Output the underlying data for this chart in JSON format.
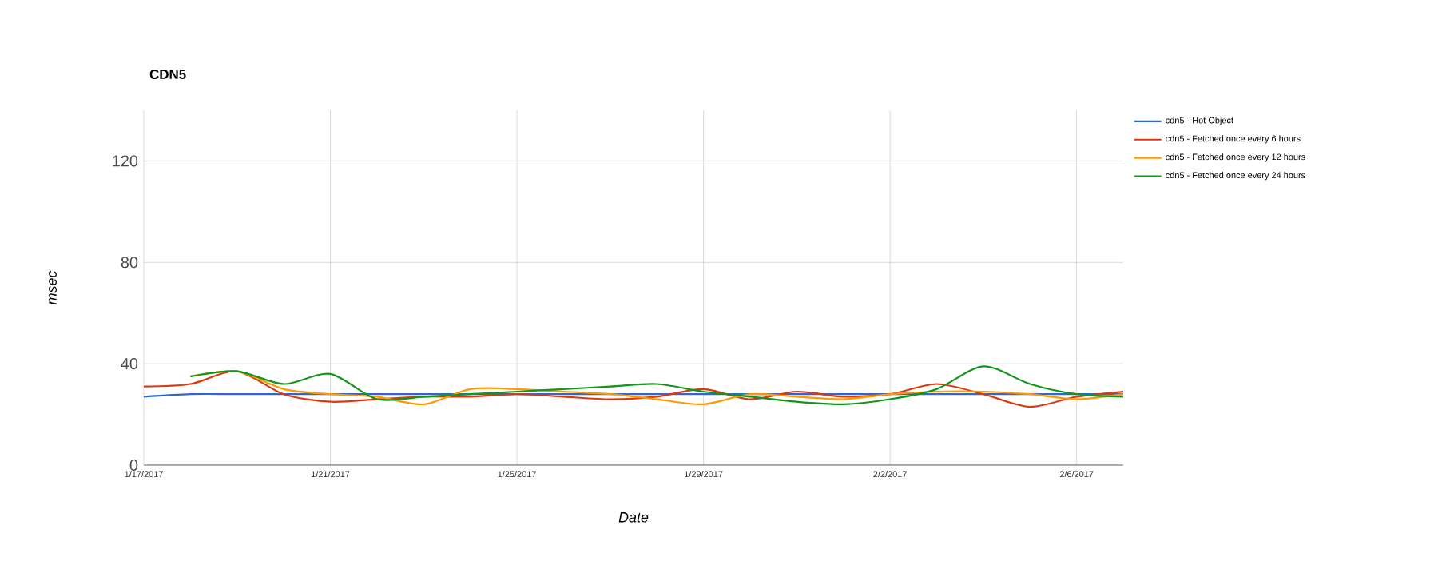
{
  "chart_data": {
    "type": "line",
    "title": "CDN5",
    "xlabel": "Date",
    "ylabel": "msec",
    "x": [
      "2017-01-17",
      "2017-01-18",
      "2017-01-19",
      "2017-01-20",
      "2017-01-21",
      "2017-01-22",
      "2017-01-23",
      "2017-01-24",
      "2017-01-25",
      "2017-01-26",
      "2017-01-27",
      "2017-01-28",
      "2017-01-29",
      "2017-01-30",
      "2017-01-31",
      "2017-02-01",
      "2017-02-02",
      "2017-02-03",
      "2017-02-04",
      "2017-02-05",
      "2017-02-06",
      "2017-02-07"
    ],
    "series": [
      {
        "name": "cdn5 - Hot Object",
        "color": "#3366cc",
        "values": [
          27,
          28,
          28,
          28,
          28,
          28,
          28,
          28,
          28,
          28,
          28,
          28,
          28,
          28,
          28,
          28,
          28,
          28,
          28,
          28,
          28,
          28
        ]
      },
      {
        "name": "cdn5 - Fetched once every 6 hours",
        "color": "#dc3912",
        "values": [
          31,
          32,
          37,
          28,
          25,
          26,
          27,
          27,
          28,
          27,
          26,
          27,
          30,
          26,
          29,
          27,
          28,
          32,
          28,
          23,
          27,
          29
        ]
      },
      {
        "name": "cdn5 - Fetched once every 12 hours",
        "color": "#ff9900",
        "values": [
          null,
          35,
          37,
          30,
          28,
          27,
          24,
          30,
          30,
          29,
          28,
          26,
          24,
          28,
          27,
          26,
          28,
          29,
          29,
          28,
          26,
          28
        ]
      },
      {
        "name": "cdn5 - Fetched once every 24 hours",
        "color": "#109618",
        "values": [
          null,
          35,
          37,
          32,
          36,
          26,
          27,
          28,
          29,
          30,
          31,
          32,
          29,
          27,
          25,
          24,
          26,
          30,
          39,
          32,
          28,
          27
        ]
      }
    ],
    "xlim": [
      "2017-01-17",
      "2017-02-07"
    ],
    "xticks": [
      {
        "value": "2017-01-17",
        "label": "1/17/2017"
      },
      {
        "value": "2017-01-21",
        "label": "1/21/2017"
      },
      {
        "value": "2017-01-25",
        "label": "1/25/2017"
      },
      {
        "value": "2017-01-29",
        "label": "1/29/2017"
      },
      {
        "value": "2017-02-02",
        "label": "2/2/2017"
      },
      {
        "value": "2017-02-06",
        "label": "2/6/2017"
      }
    ],
    "ylim": [
      0,
      140
    ],
    "yticks": [
      0,
      40,
      80,
      120
    ],
    "grid": true,
    "legend": "right",
    "marker": "none",
    "line_style": "solid"
  }
}
